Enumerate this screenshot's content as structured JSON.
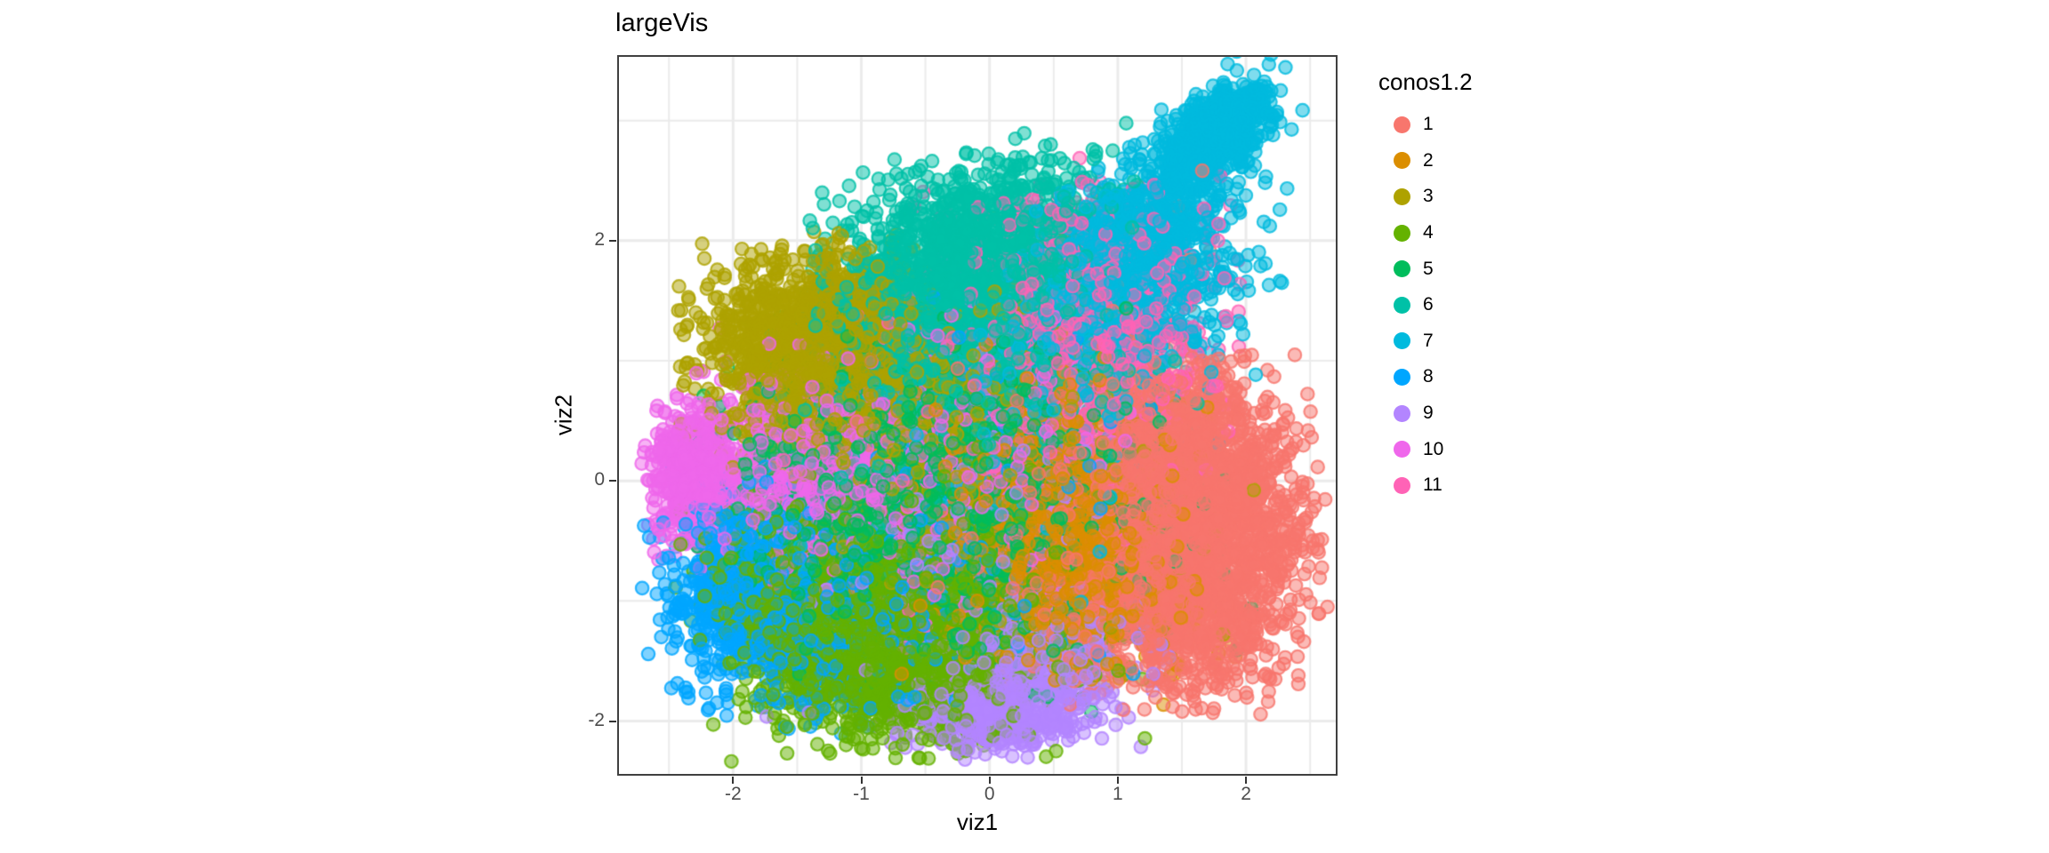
{
  "chart_data": {
    "type": "scatter",
    "title": "largeVis",
    "xlabel": "viz1",
    "ylabel": "viz2",
    "xlim": [
      -2.89,
      2.7
    ],
    "ylim": [
      -2.44,
      3.53
    ],
    "x_major_ticks": [
      -2,
      -1,
      0,
      1,
      2
    ],
    "x_tick_labels": [
      "-2",
      "-1",
      "0",
      "1",
      "2"
    ],
    "y_major_ticks": [
      -2,
      0,
      2
    ],
    "y_tick_labels": [
      "-2",
      "0",
      "2"
    ],
    "x_minor_gridlines": [
      -2.5,
      -1.5,
      -0.5,
      0.5,
      1.5,
      2.5
    ],
    "y_minor_gridlines": [
      -1,
      1,
      3
    ],
    "grid": "on",
    "gridline_color": "#ebebeb",
    "panel_border_color": "#404040",
    "tick_label_color": "#4d4d4d",
    "legend_title": "conos1.2",
    "legend_position": "right",
    "point_style": {
      "radius_px": 7.2,
      "fill_alpha": 0.5,
      "stroke_alpha": 0.8,
      "stroke_width_px": 2.2
    },
    "series": [
      {
        "name": "1",
        "color": "#F8766D",
        "clusters": [
          [
            2800,
            1.55,
            -0.45,
            0.42,
            0.58,
            0
          ],
          [
            400,
            0.85,
            -0.7,
            0.45,
            0.45,
            0
          ],
          [
            300,
            1.45,
            0.35,
            0.35,
            0.35,
            0
          ],
          [
            30,
            1.3,
            1.6,
            0.4,
            0.45,
            0
          ],
          [
            60,
            0.3,
            -0.2,
            0.6,
            0.6,
            0
          ]
        ]
      },
      {
        "name": "2",
        "color": "#DB8E00",
        "clusters": [
          [
            1300,
            0.78,
            -0.55,
            0.34,
            0.45,
            0
          ],
          [
            400,
            0.15,
            -0.35,
            0.5,
            0.55,
            0
          ],
          [
            80,
            0.6,
            0.4,
            0.5,
            0.4,
            0
          ],
          [
            40,
            1.4,
            -1.1,
            0.3,
            0.3,
            0
          ]
        ]
      },
      {
        "name": "3",
        "color": "#AEA200",
        "clusters": [
          [
            1600,
            -1.35,
            1.05,
            0.42,
            0.4,
            0
          ],
          [
            400,
            -0.75,
            0.65,
            0.45,
            0.45,
            0
          ],
          [
            220,
            -0.3,
            0.05,
            0.6,
            0.55,
            0
          ],
          [
            60,
            1.1,
            -0.55,
            0.45,
            0.5,
            0
          ],
          [
            40,
            0.3,
            1.2,
            0.5,
            0.4,
            0
          ]
        ]
      },
      {
        "name": "4",
        "color": "#64B200",
        "clusters": [
          [
            2000,
            -0.75,
            -1.3,
            0.55,
            0.4,
            0
          ],
          [
            300,
            -1.55,
            -0.85,
            0.35,
            0.35,
            0
          ],
          [
            250,
            -0.25,
            -0.5,
            0.5,
            0.45,
            0
          ],
          [
            60,
            0.6,
            -1.4,
            0.35,
            0.3,
            0
          ]
        ]
      },
      {
        "name": "5",
        "color": "#00BD5C",
        "clusters": [
          [
            750,
            -0.85,
            -0.35,
            0.55,
            0.55,
            0
          ],
          [
            750,
            -0.35,
            0.3,
            0.55,
            0.5,
            0
          ],
          [
            450,
            0.2,
            -0.55,
            0.5,
            0.55,
            0
          ],
          [
            150,
            0.8,
            -0.1,
            0.5,
            0.6,
            0
          ],
          [
            100,
            -1.4,
            0.4,
            0.4,
            0.4,
            0
          ]
        ]
      },
      {
        "name": "6",
        "color": "#00C1A7",
        "clusters": [
          [
            1700,
            -0.15,
            1.75,
            0.52,
            0.46,
            0.25
          ],
          [
            350,
            -0.45,
            1.0,
            0.5,
            0.35,
            0
          ],
          [
            150,
            0.35,
            0.75,
            0.5,
            0.4,
            0
          ],
          [
            80,
            -0.9,
            0.5,
            0.35,
            0.45,
            0
          ]
        ]
      },
      {
        "name": "7",
        "color": "#00BADE",
        "clusters": [
          [
            550,
            1.8,
            2.95,
            0.19,
            0.17,
            0.5
          ],
          [
            900,
            1.15,
            2.1,
            0.5,
            0.52,
            0.78
          ],
          [
            550,
            1.15,
            1.55,
            0.45,
            0.4,
            0.3
          ],
          [
            180,
            0.4,
            0.55,
            0.55,
            0.6,
            0
          ],
          [
            60,
            -0.6,
            -0.3,
            0.5,
            0.6,
            0
          ]
        ]
      },
      {
        "name": "8",
        "color": "#00A6FF",
        "clusters": [
          [
            600,
            -1.95,
            -0.9,
            0.3,
            0.42,
            0
          ],
          [
            380,
            -1.25,
            -1.2,
            0.45,
            0.4,
            0
          ],
          [
            300,
            -0.35,
            -0.55,
            0.7,
            0.6,
            0
          ],
          [
            60,
            0.4,
            0.3,
            0.5,
            0.5,
            0
          ]
        ]
      },
      {
        "name": "9",
        "color": "#B385FF",
        "clusters": [
          [
            470,
            0.05,
            -1.92,
            0.33,
            0.16,
            0
          ],
          [
            320,
            0.4,
            -1.45,
            0.42,
            0.3,
            0
          ],
          [
            280,
            -0.25,
            -0.7,
            0.6,
            0.6,
            0
          ],
          [
            60,
            0.3,
            0.2,
            0.5,
            0.5,
            0
          ]
        ]
      },
      {
        "name": "10",
        "color": "#EF67EB",
        "clusters": [
          [
            480,
            -2.3,
            0.05,
            0.17,
            0.26,
            0
          ],
          [
            750,
            -1.35,
            0.15,
            0.5,
            0.45,
            0
          ],
          [
            380,
            -0.45,
            -0.1,
            0.55,
            0.55,
            0
          ],
          [
            80,
            0.3,
            0.7,
            0.5,
            0.5,
            0
          ]
        ]
      },
      {
        "name": "11",
        "color": "#FF63B6",
        "clusters": [
          [
            550,
            0.85,
            1.25,
            0.45,
            0.42,
            0
          ],
          [
            180,
            0.65,
            1.9,
            0.5,
            0.35,
            0
          ],
          [
            250,
            0.45,
            0.45,
            0.6,
            0.55,
            0
          ],
          [
            60,
            -0.4,
            0.1,
            0.6,
            0.5,
            0
          ]
        ]
      }
    ]
  }
}
